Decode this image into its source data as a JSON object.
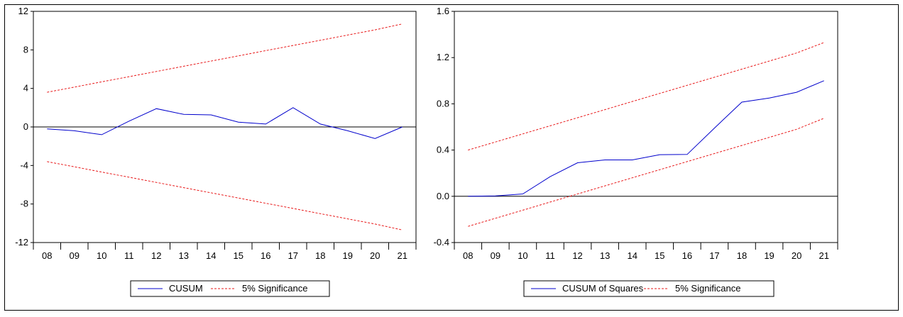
{
  "chart_data": [
    {
      "type": "line",
      "x": [
        "08",
        "09",
        "10",
        "11",
        "12",
        "13",
        "14",
        "15",
        "16",
        "17",
        "18",
        "19",
        "20",
        "21"
      ],
      "ylim": [
        -12,
        12
      ],
      "yticks": [
        -12,
        -8,
        -4,
        0,
        4,
        8,
        12
      ],
      "yticks_labels": [
        "-12",
        "-8",
        "-4",
        "0",
        "4",
        "8",
        "12"
      ],
      "zero_line": true,
      "legend_position": "bottom-center",
      "series": [
        {
          "name": "CUSUM",
          "color": "#0000cc",
          "style": "solid",
          "values": [
            -0.2,
            -0.4,
            -0.8,
            0.6,
            1.9,
            1.3,
            1.25,
            0.5,
            0.3,
            2.0,
            0.3,
            -0.4,
            -1.2,
            0.0
          ]
        },
        {
          "name": "5% Significance",
          "color": "#e8191a",
          "style": "dashed",
          "values": [
            3.6,
            4.14,
            4.68,
            5.22,
            5.76,
            6.3,
            6.84,
            7.38,
            7.92,
            8.46,
            9.0,
            9.54,
            10.08,
            10.7
          ]
        },
        {
          "name": "",
          "color": "#e8191a",
          "style": "dashed",
          "values": [
            -3.6,
            -4.14,
            -4.68,
            -5.22,
            -5.76,
            -6.3,
            -6.84,
            -7.38,
            -7.92,
            -8.46,
            -9.0,
            -9.54,
            -10.08,
            -10.7
          ]
        }
      ]
    },
    {
      "type": "line",
      "x": [
        "08",
        "09",
        "10",
        "11",
        "12",
        "13",
        "14",
        "15",
        "16",
        "17",
        "18",
        "19",
        "20",
        "21"
      ],
      "ylim": [
        -0.4,
        1.6
      ],
      "yticks": [
        -0.4,
        0.0,
        0.4,
        0.8,
        1.2,
        1.6
      ],
      "yticks_labels": [
        "-0.4",
        "0.0",
        "0.4",
        "0.8",
        "1.2",
        "1.6"
      ],
      "zero_line": true,
      "legend_position": "bottom-center",
      "series": [
        {
          "name": "CUSUM of Squares",
          "color": "#0000cc",
          "style": "solid",
          "values": [
            0.0,
            0.003,
            0.02,
            0.17,
            0.29,
            0.315,
            0.315,
            0.36,
            0.362,
            0.59,
            0.815,
            0.85,
            0.9,
            1.0
          ]
        },
        {
          "name": "5% Significance",
          "color": "#e8191a",
          "style": "dashed",
          "values": [
            0.4,
            0.47,
            0.54,
            0.61,
            0.68,
            0.75,
            0.82,
            0.89,
            0.96,
            1.03,
            1.1,
            1.17,
            1.24,
            1.33
          ]
        },
        {
          "name": "",
          "color": "#e8191a",
          "style": "dashed",
          "values": [
            -0.26,
            -0.19,
            -0.12,
            -0.05,
            0.02,
            0.09,
            0.16,
            0.23,
            0.3,
            0.37,
            0.44,
            0.51,
            0.58,
            0.675
          ]
        }
      ]
    }
  ]
}
